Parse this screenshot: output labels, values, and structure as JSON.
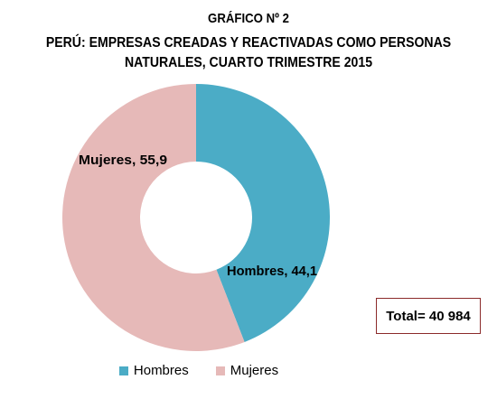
{
  "header": {
    "figure_label": "GRÁFICO Nº 2",
    "title_line1": "PERÚ: EMPRESAS CREADAS Y REACTIVADAS COMO PERSONAS",
    "title_line2": "NATURALES, CUARTO TRIMESTRE 2015"
  },
  "total": {
    "text": "Total= 40 984"
  },
  "chart_data": {
    "type": "pie",
    "donut": true,
    "title": "PERÚ: EMPRESAS CREADAS Y REACTIVADAS COMO PERSONAS NATURALES, CUARTO TRIMESTRE 2015",
    "categories": [
      "Hombres",
      "Mujeres"
    ],
    "values": [
      44.1,
      55.9
    ],
    "colors": [
      "#4bacc6",
      "#e6b9b8"
    ],
    "data_labels": [
      "Hombres, 44,1",
      "Mujeres, 55,9"
    ],
    "legend_position": "bottom",
    "total_label": "Total= 40 984"
  },
  "legend": {
    "items": [
      {
        "label": "Hombres",
        "color": "#4bacc6"
      },
      {
        "label": "Mujeres",
        "color": "#e6b9b8"
      }
    ]
  }
}
